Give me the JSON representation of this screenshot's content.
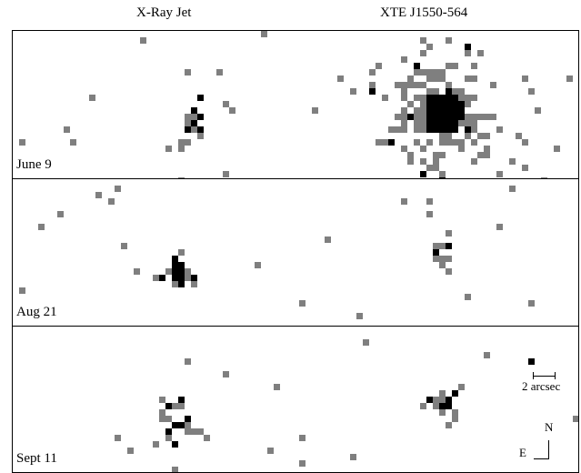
{
  "header": {
    "left": "X-Ray Jet",
    "right": "XTE J1550-564"
  },
  "panels": [
    {
      "date": "June 9"
    },
    {
      "date": "Aug 21"
    },
    {
      "date": "Sept 11"
    }
  ],
  "scale_bar": {
    "label": "2 arcsec"
  },
  "compass": {
    "north": "N",
    "east": "E"
  },
  "colors": {
    "count_low": "#7f7f7f",
    "count_high": "#000000",
    "background": "#ffffff"
  }
}
